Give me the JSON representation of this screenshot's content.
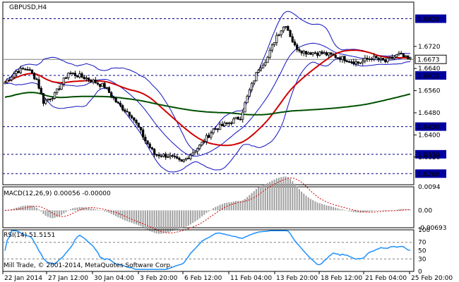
{
  "chart_data": [
    {
      "type": "candlestick",
      "title": "GBPUSD,H4",
      "ylim": [
        1.622,
        1.688
      ],
      "y_ticks": [
        1.672,
        1.664,
        1.656,
        1.648,
        1.64,
        1.632
      ],
      "levels": [
        {
          "value": 1.682,
          "label": "1.6820",
          "style": "dashed"
        },
        {
          "value": 1.6615,
          "label": "1.6615",
          "style": "dashed"
        },
        {
          "value": 1.643,
          "label": "1.6430",
          "style": "dashed"
        },
        {
          "value": 1.633,
          "label": "1.6330",
          "style": "dashed"
        },
        {
          "value": 1.626,
          "label": "1.6260",
          "style": "dashed"
        }
      ],
      "current_price": {
        "value": 1.6673,
        "label": "1.6673"
      },
      "x_labels": [
        "22 Jan 2014",
        "27 Jan 12:00",
        "30 Jan 04:00",
        "3 Feb 20:00",
        "6 Feb 12:00",
        "11 Feb 04:00",
        "13 Feb 20:00",
        "18 Feb 12:00",
        "21 Feb 04:00",
        "25 Feb 20:00"
      ],
      "anchors": [
        [
          0,
          1.659
        ],
        [
          5,
          1.663
        ],
        [
          10,
          1.664
        ],
        [
          14,
          1.66
        ],
        [
          17,
          1.652
        ],
        [
          22,
          1.6545
        ],
        [
          28,
          1.6625
        ],
        [
          36,
          1.6605
        ],
        [
          44,
          1.6575
        ],
        [
          50,
          1.651
        ],
        [
          56,
          1.647
        ],
        [
          62,
          1.638
        ],
        [
          66,
          1.633
        ],
        [
          72,
          1.6325
        ],
        [
          78,
          1.63
        ],
        [
          82,
          1.633
        ],
        [
          86,
          1.636
        ],
        [
          92,
          1.642
        ],
        [
          98,
          1.644
        ],
        [
          104,
          1.6465
        ],
        [
          108,
          1.656
        ],
        [
          112,
          1.664
        ],
        [
          116,
          1.668
        ],
        [
          120,
          1.676
        ],
        [
          124,
          1.68
        ],
        [
          128,
          1.672
        ],
        [
          132,
          1.67
        ],
        [
          140,
          1.6695
        ],
        [
          148,
          1.668
        ],
        [
          156,
          1.666
        ],
        [
          162,
          1.668
        ],
        [
          168,
          1.6665
        ],
        [
          174,
          1.669
        ],
        [
          178,
          1.6673
        ]
      ],
      "colors": {
        "bull": "#000000",
        "bear": "#000000",
        "ma_fast": "#d00000",
        "ma_slow": "#005000",
        "bands": "#1010c0",
        "grid": "#000080"
      }
    },
    {
      "type": "macd",
      "title": "MACD(12,26,9) 0.00056 -0.00000",
      "ylim": [
        -0.00693,
        0.0094
      ],
      "y_labels": [
        {
          "value": 0.0094,
          "label": "0.0094"
        },
        {
          "value": 0.0,
          "label": "0.00"
        },
        {
          "value": -0.00693,
          "label": "-0.00693"
        }
      ],
      "colors": {
        "hist": "#a0a0a0",
        "signal": "#d00000"
      }
    },
    {
      "type": "rsi",
      "title": "RSI(14) 51.5151",
      "ylim": [
        0,
        100
      ],
      "y_labels": [
        {
          "value": 100,
          "label": "100"
        },
        {
          "value": 70,
          "label": "70"
        },
        {
          "value": 50,
          "label": "50"
        },
        {
          "value": 30,
          "label": "30"
        },
        {
          "value": 0,
          "label": "0"
        }
      ],
      "colors": {
        "line": "#1e90ff"
      }
    }
  ],
  "copyright": "Mill Trade, © 2001-2014, MetaQuotes Software Corp."
}
